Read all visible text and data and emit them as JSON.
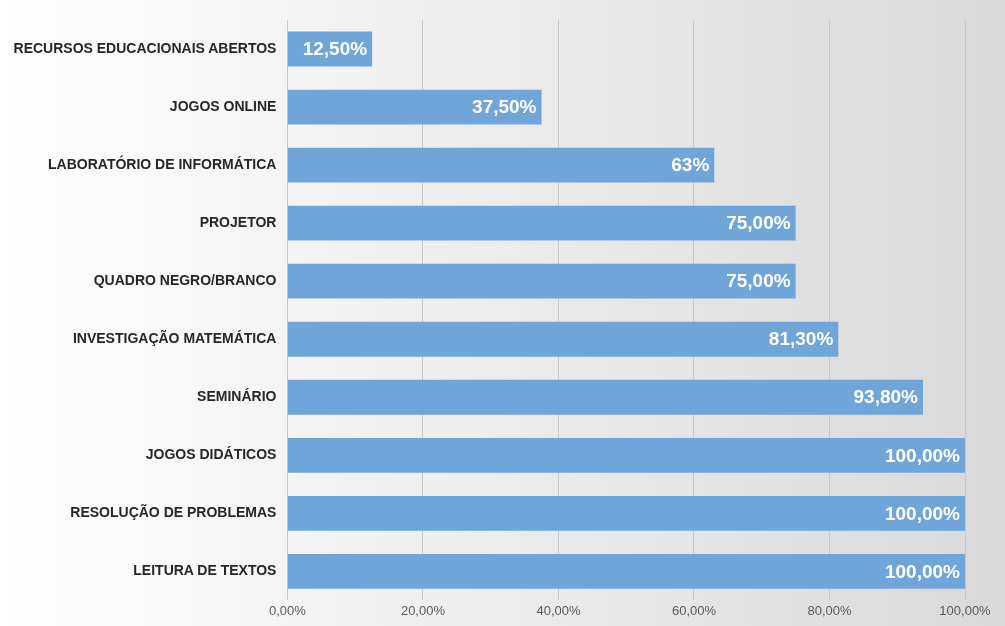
{
  "chart_data": {
    "type": "bar",
    "orientation": "horizontal",
    "categories": [
      "RECURSOS EDUCACIONAIS ABERTOS",
      "JOGOS ONLINE",
      "LABORATÓRIO DE INFORMÁTICA",
      "PROJETOR",
      "QUADRO NEGRO/BRANCO",
      "INVESTIGAÇÃO MATEMÁTICA",
      "SEMINÁRIO",
      "JOGOS DIDÁTICOS",
      "RESOLUÇÃO DE PROBLEMAS",
      "LEITURA DE TEXTOS"
    ],
    "values": [
      12.5,
      37.5,
      63,
      75,
      75,
      81.3,
      93.8,
      100,
      100,
      100
    ],
    "value_labels": [
      "12,50%",
      "37,50%",
      "63%",
      "75,00%",
      "75,00%",
      "81,30%",
      "93,80%",
      "100,00%",
      "100,00%",
      "100,00%"
    ],
    "color": "#6fa5d9",
    "xlim": [
      0,
      100
    ],
    "xticks": [
      {
        "value": 0,
        "label": "0,00%"
      },
      {
        "value": 20,
        "label": "20,00%"
      },
      {
        "value": 40,
        "label": "40,00%"
      },
      {
        "value": 60,
        "label": "60,00%"
      },
      {
        "value": 80,
        "label": "80,00%"
      },
      {
        "value": 100,
        "label": "100,00%"
      }
    ],
    "grid": "x",
    "legend": false
  }
}
